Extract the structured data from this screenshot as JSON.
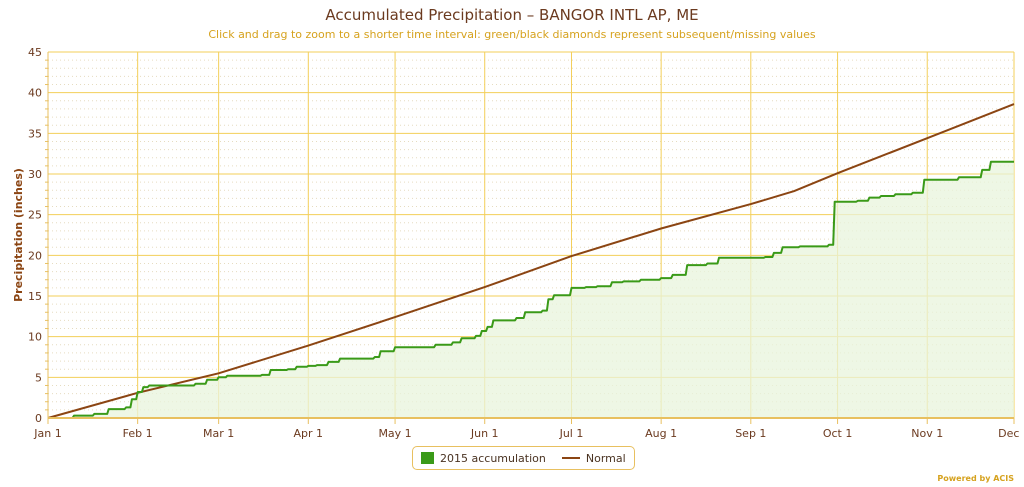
{
  "chart_data": {
    "type": "line",
    "title": "Accumulated Precipitation – BANGOR INTL AP, ME",
    "subtitle": "Click and drag to zoom to a shorter time interval: green/black diamonds represent subsequent/missing values",
    "xlabel": "",
    "ylabel": "Precipitation (inches)",
    "ylim": [
      0,
      45
    ],
    "xlim_days": [
      0,
      334
    ],
    "y_ticks": [
      "0",
      "5",
      "10",
      "15",
      "20",
      "25",
      "30",
      "35",
      "40",
      "45"
    ],
    "x_ticks": [
      {
        "label": "Jan 1",
        "day": 0
      },
      {
        "label": "Feb 1",
        "day": 31
      },
      {
        "label": "Mar 1",
        "day": 59
      },
      {
        "label": "Apr 1",
        "day": 90
      },
      {
        "label": "May 1",
        "day": 120
      },
      {
        "label": "Jun 1",
        "day": 151
      },
      {
        "label": "Jul 1",
        "day": 181
      },
      {
        "label": "Aug 1",
        "day": 212
      },
      {
        "label": "Sep 1",
        "day": 243
      },
      {
        "label": "Oct 1",
        "day": 273
      },
      {
        "label": "Nov 1",
        "day": 304
      },
      {
        "label": "Dec 1",
        "day": 334
      }
    ],
    "grid": true,
    "minor_grid": true,
    "legend_position": "bottom-center",
    "series": [
      {
        "name": "2015 accumulation",
        "color": "#3a9a18",
        "fill": "#e8f4dc",
        "style": "step-area",
        "x": [
          0,
          9,
          16,
          21,
          27,
          29,
          31,
          33,
          35,
          38,
          51,
          55,
          59,
          62,
          74,
          77,
          83,
          86,
          90,
          93,
          97,
          101,
          113,
          115,
          120,
          131,
          134,
          140,
          143,
          148,
          150,
          152,
          154,
          162,
          165,
          171,
          173,
          175,
          178,
          181,
          186,
          190,
          195,
          199,
          205,
          212,
          216,
          221,
          228,
          232,
          243,
          248,
          251,
          254,
          260,
          270,
          272,
          280,
          284,
          288,
          293,
          299,
          303,
          315,
          323,
          326,
          334
        ],
        "values": [
          0,
          0.3,
          0.5,
          1.1,
          1.3,
          2.3,
          3.2,
          3.8,
          4.0,
          4.0,
          4.2,
          4.7,
          5.0,
          5.2,
          5.3,
          5.9,
          6.0,
          6.3,
          6.4,
          6.5,
          6.9,
          7.3,
          7.5,
          8.2,
          8.7,
          8.7,
          9.0,
          9.3,
          9.8,
          10.1,
          10.7,
          11.2,
          12.0,
          12.3,
          13.0,
          13.2,
          14.6,
          15.1,
          15.1,
          16.0,
          16.1,
          16.2,
          16.7,
          16.8,
          17.0,
          17.2,
          17.6,
          18.8,
          19.0,
          19.7,
          19.7,
          19.8,
          20.3,
          21.0,
          21.1,
          21.3,
          26.6,
          26.7,
          27.1,
          27.3,
          27.5,
          27.7,
          29.3,
          29.6,
          30.5,
          31.5,
          31.5
        ]
      },
      {
        "name": "Normal",
        "color": "#8b4513",
        "style": "line",
        "x": [
          0,
          31,
          59,
          90,
          120,
          151,
          181,
          212,
          243,
          258,
          273,
          304,
          334
        ],
        "values": [
          0,
          3.1,
          5.5,
          8.9,
          12.4,
          16.1,
          19.9,
          23.3,
          26.3,
          27.9,
          30.1,
          34.4,
          38.6
        ]
      }
    ]
  },
  "legend": {
    "items": [
      "2015 accumulation",
      "Normal"
    ]
  },
  "credits": "Powered by ACIS"
}
